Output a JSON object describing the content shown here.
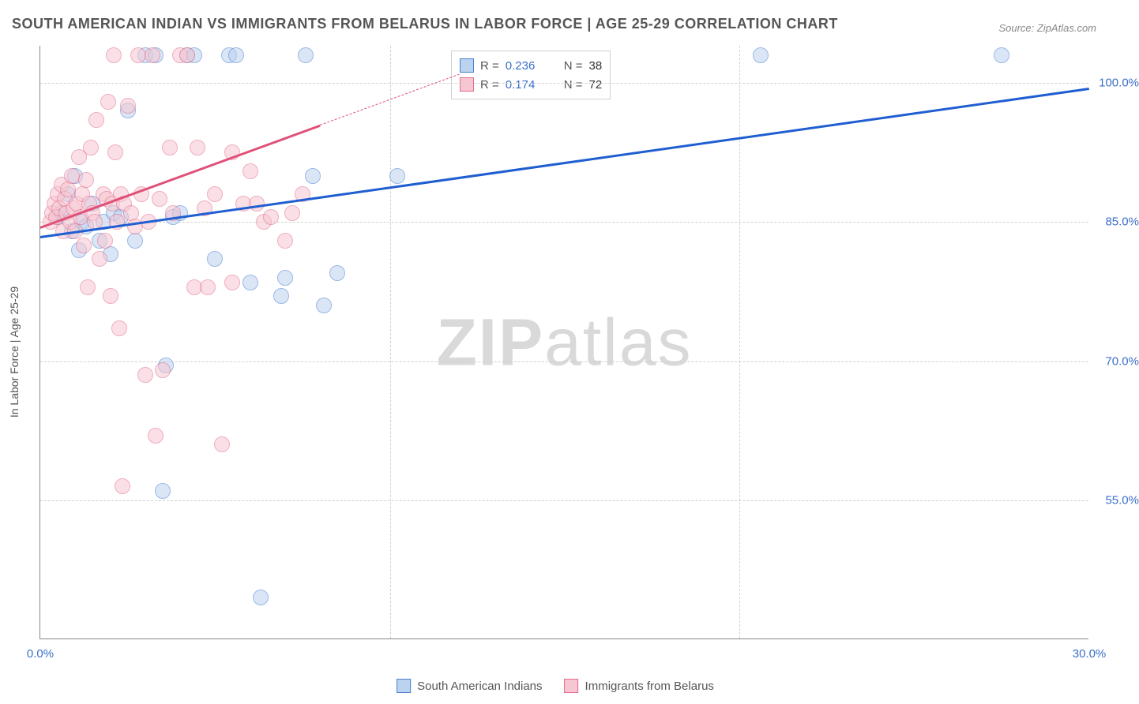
{
  "title": "SOUTH AMERICAN INDIAN VS IMMIGRANTS FROM BELARUS IN LABOR FORCE | AGE 25-29 CORRELATION CHART",
  "source_label": "Source: ZipAtlas.com",
  "y_axis_title": "In Labor Force | Age 25-29",
  "watermark": {
    "zip": "ZIP",
    "atlas": "atlas",
    "color": "#d9d9d9"
  },
  "chart": {
    "type": "scatter",
    "background": "#ffffff",
    "grid_color": "#d0d0d0",
    "axis_color": "#888888",
    "x": {
      "min": 0.0,
      "max": 30.0,
      "ticks": [
        0.0,
        30.0
      ],
      "tick_format": "percent1",
      "tick_color": "#3b6fc7",
      "gridlines": [
        10.0,
        20.0
      ]
    },
    "y": {
      "min": 40.0,
      "max": 104.0,
      "ticks": [
        55.0,
        70.0,
        85.0,
        100.0
      ],
      "tick_format": "percent1",
      "tick_color": "#3b6fc7"
    },
    "marker_radius": 10,
    "marker_opacity": 0.55,
    "series": [
      {
        "key": "south_american_indians",
        "label": "South American Indians",
        "color_fill": "#bcd3f0",
        "color_stroke": "#4a7fd1",
        "R": "0.236",
        "N": "38",
        "trend": {
          "x1": 0.0,
          "y1": 83.5,
          "x2": 30.0,
          "y2": 99.5,
          "stroke": "#1f5ed1",
          "width": 3,
          "dash": "none"
        },
        "points": [
          [
            0.5,
            85.5
          ],
          [
            0.6,
            86.0
          ],
          [
            0.8,
            88.0
          ],
          [
            0.9,
            84.0
          ],
          [
            1.0,
            90.0
          ],
          [
            1.1,
            82.0
          ],
          [
            1.2,
            85.0
          ],
          [
            1.3,
            84.5
          ],
          [
            1.5,
            87.0
          ],
          [
            1.7,
            83.0
          ],
          [
            1.8,
            85.0
          ],
          [
            2.0,
            81.5
          ],
          [
            2.1,
            86.0
          ],
          [
            2.3,
            85.5
          ],
          [
            2.5,
            97.0
          ],
          [
            2.7,
            83.0
          ],
          [
            3.0,
            103.0
          ],
          [
            3.3,
            103.0
          ],
          [
            3.6,
            69.5
          ],
          [
            3.8,
            85.5
          ],
          [
            3.5,
            56.0
          ],
          [
            4.0,
            86.0
          ],
          [
            4.2,
            103.0
          ],
          [
            4.4,
            103.0
          ],
          [
            5.0,
            81.0
          ],
          [
            5.4,
            103.0
          ],
          [
            5.6,
            103.0
          ],
          [
            6.0,
            78.5
          ],
          [
            6.3,
            44.5
          ],
          [
            6.9,
            77.0
          ],
          [
            7.0,
            79.0
          ],
          [
            7.6,
            103.0
          ],
          [
            7.8,
            90.0
          ],
          [
            8.1,
            76.0
          ],
          [
            8.5,
            79.5
          ],
          [
            10.2,
            90.0
          ],
          [
            20.6,
            103.0
          ],
          [
            27.5,
            103.0
          ]
        ]
      },
      {
        "key": "immigrants_belarus",
        "label": "Immigrants from Belarus",
        "color_fill": "#f6c7d2",
        "color_stroke": "#e56b8a",
        "R": "0.174",
        "N": "72",
        "trend": {
          "x1": 0.0,
          "y1": 84.5,
          "x2": 8.0,
          "y2": 95.5,
          "extend_dash_to_x": 12.0,
          "stroke": "#e05078",
          "width": 3
        },
        "points": [
          [
            0.3,
            85.0
          ],
          [
            0.35,
            86.0
          ],
          [
            0.4,
            87.0
          ],
          [
            0.45,
            85.5
          ],
          [
            0.5,
            88.0
          ],
          [
            0.55,
            86.5
          ],
          [
            0.6,
            89.0
          ],
          [
            0.65,
            84.0
          ],
          [
            0.7,
            87.5
          ],
          [
            0.75,
            86.0
          ],
          [
            0.8,
            88.5
          ],
          [
            0.85,
            85.0
          ],
          [
            0.9,
            90.0
          ],
          [
            0.95,
            86.5
          ],
          [
            1.0,
            84.0
          ],
          [
            1.05,
            87.0
          ],
          [
            1.1,
            92.0
          ],
          [
            1.15,
            85.5
          ],
          [
            1.2,
            88.0
          ],
          [
            1.25,
            82.5
          ],
          [
            1.3,
            89.5
          ],
          [
            1.35,
            78.0
          ],
          [
            1.4,
            87.0
          ],
          [
            1.45,
            93.0
          ],
          [
            1.5,
            86.0
          ],
          [
            1.55,
            85.0
          ],
          [
            1.6,
            96.0
          ],
          [
            1.7,
            81.0
          ],
          [
            1.8,
            88.0
          ],
          [
            1.85,
            83.0
          ],
          [
            1.9,
            87.5
          ],
          [
            1.95,
            98.0
          ],
          [
            2.0,
            77.0
          ],
          [
            2.05,
            87.0
          ],
          [
            2.1,
            103.0
          ],
          [
            2.15,
            92.5
          ],
          [
            2.2,
            85.0
          ],
          [
            2.25,
            73.5
          ],
          [
            2.3,
            88.0
          ],
          [
            2.35,
            56.5
          ],
          [
            2.4,
            87.0
          ],
          [
            2.5,
            97.5
          ],
          [
            2.6,
            86.0
          ],
          [
            2.7,
            84.5
          ],
          [
            2.8,
            103.0
          ],
          [
            2.9,
            88.0
          ],
          [
            3.0,
            68.5
          ],
          [
            3.1,
            85.0
          ],
          [
            3.2,
            103.0
          ],
          [
            3.3,
            62.0
          ],
          [
            3.4,
            87.5
          ],
          [
            3.5,
            69.0
          ],
          [
            3.7,
            93.0
          ],
          [
            3.8,
            86.0
          ],
          [
            4.0,
            103.0
          ],
          [
            4.2,
            103.0
          ],
          [
            4.4,
            78.0
          ],
          [
            4.5,
            93.0
          ],
          [
            4.7,
            86.5
          ],
          [
            4.8,
            78.0
          ],
          [
            5.0,
            88.0
          ],
          [
            5.2,
            61.0
          ],
          [
            5.5,
            92.5
          ],
          [
            5.5,
            78.5
          ],
          [
            5.8,
            87.0
          ],
          [
            6.0,
            90.5
          ],
          [
            6.2,
            87.0
          ],
          [
            6.4,
            85.0
          ],
          [
            6.6,
            85.5
          ],
          [
            7.0,
            83.0
          ],
          [
            7.2,
            86.0
          ],
          [
            7.5,
            88.0
          ]
        ]
      }
    ]
  },
  "legend_top": {
    "r_label": "R =",
    "n_label": "N =",
    "r_color": "#3b6fc7",
    "text_color": "#555555"
  },
  "legend_bottom": {
    "items": [
      "south_american_indians",
      "immigrants_belarus"
    ]
  }
}
